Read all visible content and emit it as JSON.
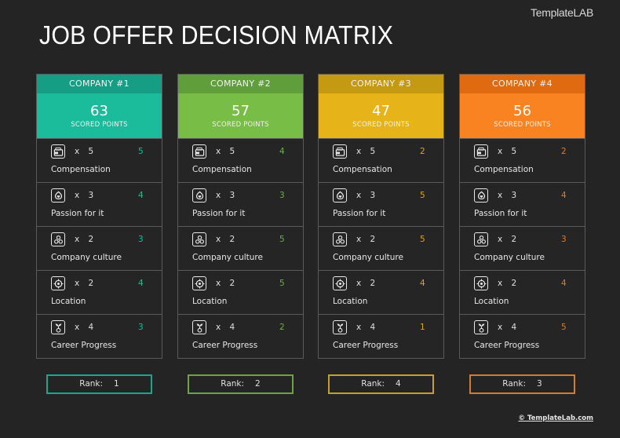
{
  "brand": "TemplateLAB",
  "title": "JOB OFFER DECISION MATRIX",
  "scored_label": "SCORED POINTS",
  "rank_label": "Rank:",
  "footer": "© TemplateLab.com",
  "criteria": [
    {
      "name": "Compensation",
      "icon": "wallet-icon",
      "weight": "x 5"
    },
    {
      "name": "Passion for it",
      "icon": "heart-flame-icon",
      "weight": "x 3"
    },
    {
      "name": "Company culture",
      "icon": "people-group-icon",
      "weight": "x 2"
    },
    {
      "name": "Location",
      "icon": "target-location-icon",
      "weight": "x 2"
    },
    {
      "name": "Career Progress",
      "icon": "growth-plant-icon",
      "weight": "x 4"
    }
  ],
  "companies": [
    {
      "label": "COMPANY #1",
      "total": "63",
      "scores": [
        "5",
        "4",
        "3",
        "4",
        "3"
      ],
      "rank": "1",
      "colors": {
        "head": "#169e84",
        "score": "#1abc9c",
        "text": "#1abc9c",
        "border": "#1aa88c"
      }
    },
    {
      "label": "COMPANY #2",
      "total": "57",
      "scores": [
        "4",
        "3",
        "5",
        "5",
        "2"
      ],
      "rank": "2",
      "colors": {
        "head": "#5f9e3a",
        "score": "#78bd45",
        "text": "#6fb043",
        "border": "#6ea343"
      }
    },
    {
      "label": "COMPANY #3",
      "total": "47",
      "scores": [
        "2",
        "5",
        "5",
        "4",
        "1"
      ],
      "rank": "4",
      "colors": {
        "head": "#c49a12",
        "score": "#e6b318",
        "text": "#d9a81a",
        "border": "#c9a027"
      }
    },
    {
      "label": "COMPANY #4",
      "total": "56",
      "scores": [
        "2",
        "4",
        "3",
        "4",
        "5"
      ],
      "rank": "3",
      "colors": {
        "head": "#e06a10",
        "score": "#f98320",
        "text": "#e07a25",
        "border": "#d67a2e"
      }
    }
  ]
}
